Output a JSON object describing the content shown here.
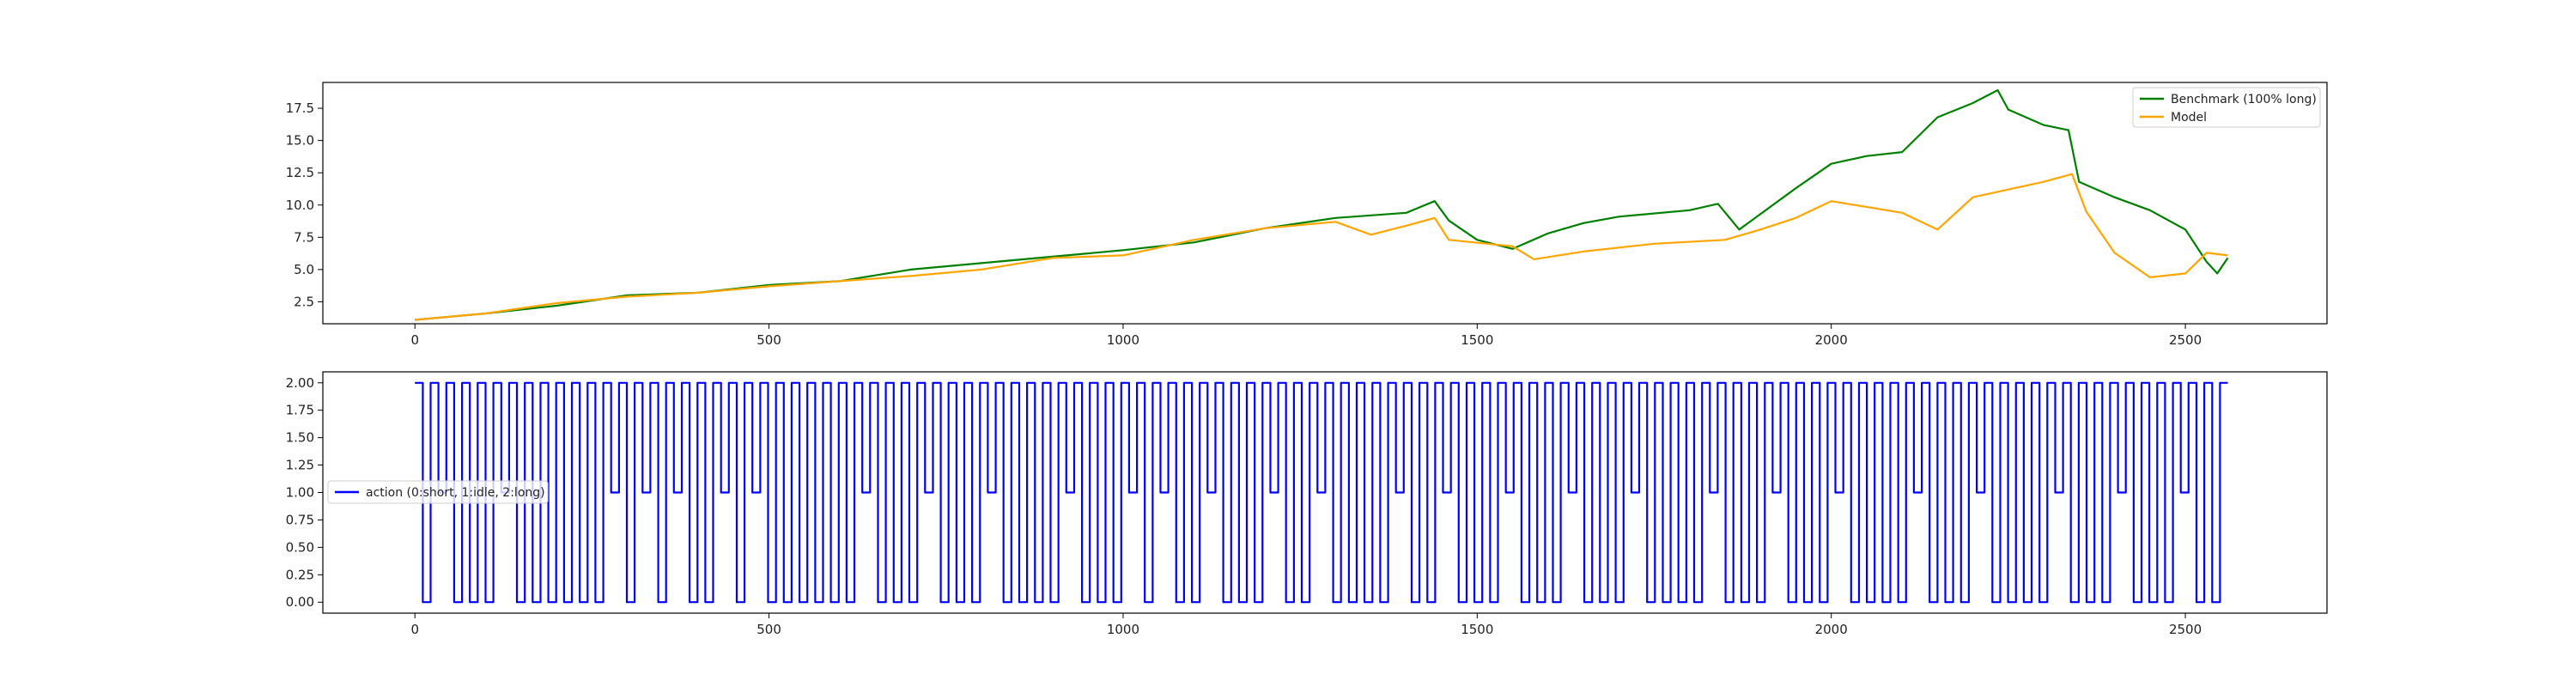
{
  "chart_data": [
    {
      "type": "line",
      "title": "",
      "xlabel": "",
      "ylabel": "",
      "xlim": [
        -130,
        2700
      ],
      "ylim": [
        0.8,
        19.5
      ],
      "x_ticks": [
        0,
        500,
        1000,
        1500,
        2000,
        2500
      ],
      "y_ticks": [
        2.5,
        5.0,
        7.5,
        10.0,
        12.5,
        15.0,
        17.5
      ],
      "y_tick_labels": [
        "2.5",
        "5.0",
        "7.5",
        "10.0",
        "12.5",
        "15.0",
        "17.5"
      ],
      "legend_position": "top-right",
      "grid": false,
      "series": [
        {
          "name": "Benchmark (100% long)",
          "color": "#008000",
          "points": [
            [
              0,
              1.1
            ],
            [
              100,
              1.6
            ],
            [
              200,
              2.2
            ],
            [
              300,
              3.0
            ],
            [
              400,
              3.2
            ],
            [
              500,
              3.8
            ],
            [
              600,
              4.1
            ],
            [
              700,
              5.0
            ],
            [
              800,
              5.5
            ],
            [
              900,
              6.0
            ],
            [
              1000,
              6.5
            ],
            [
              1100,
              7.1
            ],
            [
              1200,
              8.2
            ],
            [
              1300,
              9.0
            ],
            [
              1400,
              9.4
            ],
            [
              1440,
              10.3
            ],
            [
              1460,
              8.8
            ],
            [
              1500,
              7.3
            ],
            [
              1550,
              6.6
            ],
            [
              1600,
              7.8
            ],
            [
              1650,
              8.6
            ],
            [
              1700,
              9.1
            ],
            [
              1800,
              9.6
            ],
            [
              1840,
              10.1
            ],
            [
              1870,
              8.1
            ],
            [
              1950,
              11.3
            ],
            [
              2000,
              13.2
            ],
            [
              2050,
              13.8
            ],
            [
              2100,
              14.1
            ],
            [
              2150,
              16.8
            ],
            [
              2200,
              17.9
            ],
            [
              2235,
              18.9
            ],
            [
              2250,
              17.4
            ],
            [
              2300,
              16.2
            ],
            [
              2335,
              15.8
            ],
            [
              2350,
              11.8
            ],
            [
              2400,
              10.6
            ],
            [
              2450,
              9.6
            ],
            [
              2500,
              8.1
            ],
            [
              2530,
              5.6
            ],
            [
              2545,
              4.7
            ],
            [
              2560,
              5.9
            ]
          ]
        },
        {
          "name": "Model",
          "color": "#ffa500",
          "points": [
            [
              0,
              1.1
            ],
            [
              100,
              1.6
            ],
            [
              200,
              2.4
            ],
            [
              300,
              2.9
            ],
            [
              400,
              3.2
            ],
            [
              500,
              3.7
            ],
            [
              600,
              4.1
            ],
            [
              700,
              4.5
            ],
            [
              800,
              5.0
            ],
            [
              900,
              5.9
            ],
            [
              1000,
              6.1
            ],
            [
              1100,
              7.3
            ],
            [
              1200,
              8.2
            ],
            [
              1300,
              8.7
            ],
            [
              1350,
              7.7
            ],
            [
              1400,
              8.4
            ],
            [
              1440,
              9.0
            ],
            [
              1460,
              7.3
            ],
            [
              1550,
              6.8
            ],
            [
              1580,
              5.8
            ],
            [
              1650,
              6.4
            ],
            [
              1750,
              7.0
            ],
            [
              1850,
              7.3
            ],
            [
              1900,
              8.1
            ],
            [
              1950,
              9.0
            ],
            [
              2000,
              10.3
            ],
            [
              2100,
              9.4
            ],
            [
              2150,
              8.1
            ],
            [
              2200,
              10.6
            ],
            [
              2300,
              11.8
            ],
            [
              2340,
              12.4
            ],
            [
              2360,
              9.5
            ],
            [
              2400,
              6.3
            ],
            [
              2450,
              4.4
            ],
            [
              2500,
              4.7
            ],
            [
              2530,
              6.3
            ],
            [
              2560,
              6.1
            ]
          ]
        }
      ]
    },
    {
      "type": "line",
      "title": "",
      "xlabel": "",
      "ylabel": "",
      "xlim": [
        -130,
        2700
      ],
      "ylim": [
        -0.1,
        2.1
      ],
      "x_ticks": [
        0,
        500,
        1000,
        1500,
        2000,
        2500
      ],
      "y_ticks": [
        0.0,
        0.25,
        0.5,
        0.75,
        1.0,
        1.25,
        1.5,
        1.75,
        2.0
      ],
      "y_tick_labels": [
        "0.00",
        "0.25",
        "0.50",
        "0.75",
        "1.00",
        "1.25",
        "1.50",
        "1.75",
        "2.00"
      ],
      "legend_position": "center-left",
      "grid": false,
      "series": [
        {
          "name": "action (0:short, 1:idle, 2:long)",
          "color": "#0000ff",
          "step": true,
          "x_start": 0,
          "x_end": 2560,
          "values": [
            2,
            0,
            2,
            1,
            2,
            0,
            2,
            0,
            2,
            0,
            2,
            1,
            2,
            0,
            2,
            0,
            2,
            0,
            2,
            0,
            2,
            0,
            2,
            0,
            2,
            1,
            2,
            0,
            2,
            1,
            2,
            0,
            2,
            1,
            2,
            0,
            2,
            0,
            2,
            1,
            2,
            0,
            2,
            1,
            2,
            0,
            2,
            0,
            2,
            0,
            2,
            0,
            2,
            0,
            2,
            0,
            2,
            1,
            2,
            0,
            2,
            0,
            2,
            0,
            2,
            1,
            2,
            0,
            2,
            0,
            2,
            0,
            2,
            1,
            2,
            0,
            2,
            0,
            2,
            0,
            2,
            0,
            2,
            1,
            2,
            0,
            2,
            0,
            2,
            0,
            2,
            1,
            2,
            0,
            2,
            1,
            2,
            0,
            2,
            0,
            2,
            1,
            2,
            0,
            2,
            0,
            2,
            0,
            2,
            1,
            2,
            0,
            2,
            0,
            2,
            1,
            2,
            0,
            2,
            0,
            2,
            0,
            2,
            0,
            2,
            1,
            2,
            0,
            2,
            0,
            2,
            1,
            2,
            0,
            2,
            0,
            2,
            0,
            2,
            1,
            2,
            0,
            2,
            0,
            2,
            0,
            2,
            1,
            2,
            0,
            2,
            0,
            2,
            0,
            2,
            1,
            2,
            0,
            2,
            0,
            2,
            0,
            2,
            0,
            2,
            1,
            2,
            0,
            2,
            0,
            2,
            0,
            2,
            1,
            2,
            0,
            2,
            0,
            2,
            0,
            2,
            1,
            2,
            0,
            2,
            0,
            2,
            0,
            2,
            0,
            2,
            1,
            2,
            0,
            2,
            0,
            2,
            0,
            2,
            1,
            2,
            0,
            2,
            0,
            2,
            0,
            2,
            0,
            2,
            1,
            2,
            0,
            2,
            0,
            2,
            0,
            2,
            1,
            2,
            0,
            2,
            0,
            2,
            0,
            2,
            1,
            2,
            0,
            2,
            0,
            2
          ]
        }
      ]
    }
  ]
}
